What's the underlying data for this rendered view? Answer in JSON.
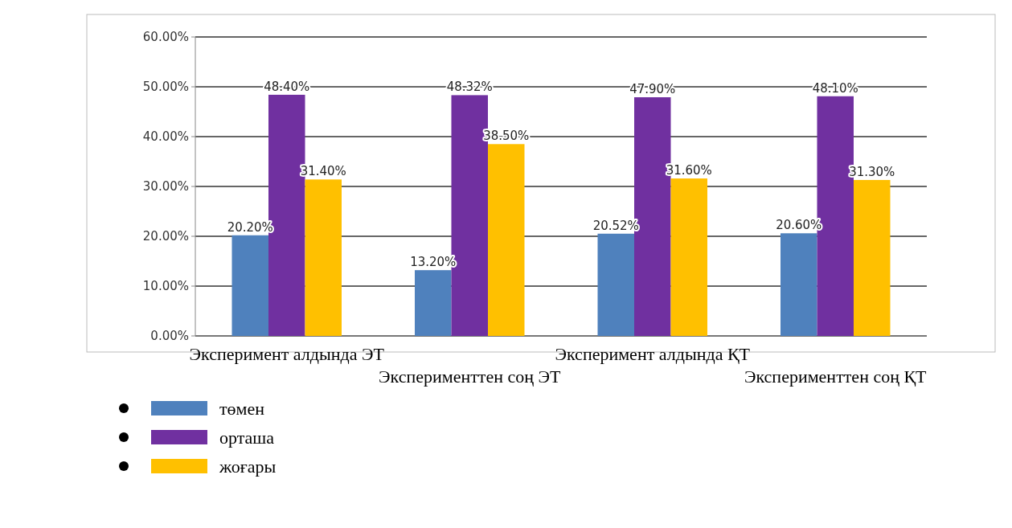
{
  "chart_data": {
    "type": "bar",
    "categories": [
      "Эксперимент алдында ЭТ",
      "Эксперименттен соң ЭТ",
      "Эксперимент алдында ҚТ",
      "Эксперименттен соң ҚТ"
    ],
    "series": [
      {
        "name": "төмен",
        "color": "#4f81bd",
        "values": [
          20.2,
          13.2,
          20.52,
          20.6
        ],
        "value_labels": [
          "20.20%",
          "13.20%",
          "20.52%",
          "20.60%"
        ]
      },
      {
        "name": "орташа",
        "color": "#7030a0",
        "values": [
          48.4,
          48.32,
          47.9,
          48.1
        ],
        "value_labels": [
          "48.40%",
          "48.32%",
          "47.90%",
          "48.10%"
        ]
      },
      {
        "name": "жоғары",
        "color": "#ffc000",
        "values": [
          31.4,
          38.5,
          31.6,
          31.3
        ],
        "value_labels": [
          "31.40%",
          "38.50%",
          "31.60%",
          "31.30%"
        ]
      }
    ],
    "ylim": [
      0,
      60
    ],
    "yticks": [
      {
        "value": 0,
        "label": "0.00%"
      },
      {
        "value": 10,
        "label": "10.00%"
      },
      {
        "value": 20,
        "label": "20.00%"
      },
      {
        "value": 30,
        "label": "30.00%"
      },
      {
        "value": 40,
        "label": "40.00%"
      },
      {
        "value": 50,
        "label": "50.00%"
      },
      {
        "value": 60,
        "label": "60.00%"
      }
    ],
    "grid": "y",
    "legend": "bottom"
  }
}
